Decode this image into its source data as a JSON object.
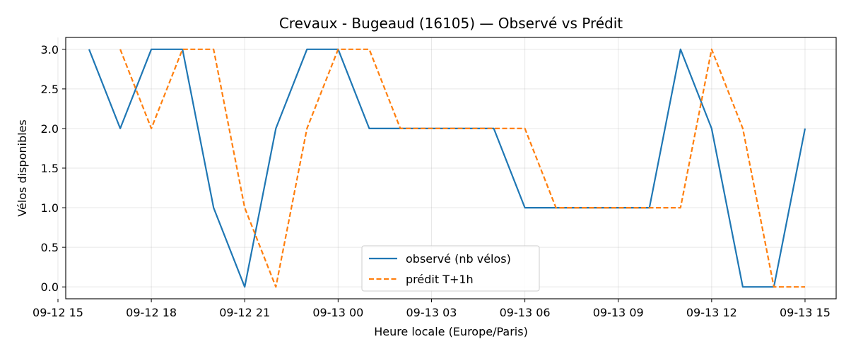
{
  "chart_data": {
    "type": "line",
    "title": "Crevaux - Bugeaud (16105) — Observé vs Prédit",
    "xlabel": "Heure locale (Europe/Paris)",
    "ylabel": "Vélos disponibles",
    "xlim": [
      "2024-09-12 15:15",
      "2024-09-13 16:00"
    ],
    "ylim": [
      -0.15,
      3.15
    ],
    "x_ticks": [
      {
        "value": "2024-09-12 15:00",
        "label": "09-12 15"
      },
      {
        "value": "2024-09-12 18:00",
        "label": "09-12 18"
      },
      {
        "value": "2024-09-12 21:00",
        "label": "09-12 21"
      },
      {
        "value": "2024-09-13 00:00",
        "label": "09-13 00"
      },
      {
        "value": "2024-09-13 03:00",
        "label": "09-13 03"
      },
      {
        "value": "2024-09-13 06:00",
        "label": "09-13 06"
      },
      {
        "value": "2024-09-13 09:00",
        "label": "09-13 09"
      },
      {
        "value": "2024-09-13 12:00",
        "label": "09-13 12"
      },
      {
        "value": "2024-09-13 15:00",
        "label": "09-13 15"
      }
    ],
    "y_ticks": [
      0.0,
      0.5,
      1.0,
      1.5,
      2.0,
      2.5,
      3.0
    ],
    "grid": true,
    "legend_position": "lower-center",
    "series": [
      {
        "name": "observé (nb vélos)",
        "style": "solid",
        "color": "#1f77b4",
        "x": [
          "2024-09-12 16:00",
          "2024-09-12 17:00",
          "2024-09-12 18:00",
          "2024-09-12 19:00",
          "2024-09-12 20:00",
          "2024-09-12 21:00",
          "2024-09-12 22:00",
          "2024-09-12 23:00",
          "2024-09-13 00:00",
          "2024-09-13 01:00",
          "2024-09-13 02:00",
          "2024-09-13 03:00",
          "2024-09-13 04:00",
          "2024-09-13 05:00",
          "2024-09-13 06:00",
          "2024-09-13 07:00",
          "2024-09-13 08:00",
          "2024-09-13 09:00",
          "2024-09-13 10:00",
          "2024-09-13 11:00",
          "2024-09-13 12:00",
          "2024-09-13 13:00",
          "2024-09-13 14:00",
          "2024-09-13 15:00"
        ],
        "values": [
          3,
          2,
          3,
          3,
          1,
          0,
          2,
          3,
          3,
          2,
          2,
          2,
          2,
          2,
          1,
          1,
          1,
          1,
          1,
          3,
          2,
          0,
          0,
          2
        ]
      },
      {
        "name": "prédit T+1h",
        "style": "dashed",
        "color": "#ff7f0e",
        "x": [
          "2024-09-12 17:00",
          "2024-09-12 18:00",
          "2024-09-12 19:00",
          "2024-09-12 20:00",
          "2024-09-12 21:00",
          "2024-09-12 22:00",
          "2024-09-12 23:00",
          "2024-09-13 00:00",
          "2024-09-13 01:00",
          "2024-09-13 02:00",
          "2024-09-13 03:00",
          "2024-09-13 04:00",
          "2024-09-13 05:00",
          "2024-09-13 06:00",
          "2024-09-13 07:00",
          "2024-09-13 08:00",
          "2024-09-13 09:00",
          "2024-09-13 10:00",
          "2024-09-13 11:00",
          "2024-09-13 12:00",
          "2024-09-13 13:00",
          "2024-09-13 14:00",
          "2024-09-13 15:00"
        ],
        "values": [
          3,
          2,
          3,
          3,
          1,
          0,
          2,
          3,
          3,
          2,
          2,
          2,
          2,
          2,
          1,
          1,
          1,
          1,
          1,
          3,
          2,
          0,
          0
        ]
      }
    ]
  }
}
